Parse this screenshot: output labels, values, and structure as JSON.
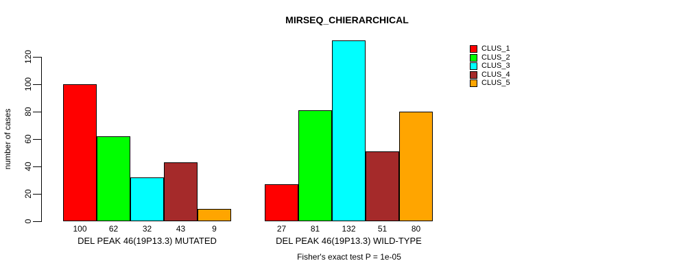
{
  "title": "MIRSEQ_CHIERARCHICAL",
  "footer": "Fisher's exact test P = 1e-05",
  "chart_data": {
    "type": "bar",
    "title": "MIRSEQ_CHIERARCHICAL",
    "xlabel": "",
    "ylabel": "number of cases",
    "yticks": [
      0,
      20,
      40,
      60,
      80,
      100,
      120
    ],
    "ylim": [
      0,
      135
    ],
    "grid": false,
    "legend_position": "top-right",
    "series": [
      {
        "name": "CLUS_1",
        "color": "#FF0000",
        "values": [
          100,
          27
        ]
      },
      {
        "name": "CLUS_2",
        "color": "#00FF00",
        "values": [
          62,
          81
        ]
      },
      {
        "name": "CLUS_3",
        "color": "#00FFFF",
        "values": [
          32,
          132
        ]
      },
      {
        "name": "CLUS_4",
        "color": "#A52A2A",
        "values": [
          43,
          51
        ]
      },
      {
        "name": "CLUS_5",
        "color": "#FFA500",
        "values": [
          9,
          80
        ]
      }
    ],
    "groups": [
      {
        "label": "DEL PEAK 46(19P13.3) MUTATED",
        "values": [
          100,
          62,
          32,
          43,
          9
        ]
      },
      {
        "label": "DEL PEAK 46(19P13.3) WILD-TYPE",
        "values": [
          27,
          81,
          132,
          51,
          80
        ]
      }
    ],
    "bar_value_labels": [
      [
        "100",
        "62",
        "32",
        "43",
        "9"
      ],
      [
        "27",
        "81",
        "132",
        "51",
        "80"
      ]
    ],
    "annotation": "Fisher's exact test P = 1e-05",
    "bar_border_color": "#000000",
    "background_color": "#FFFFFF"
  }
}
